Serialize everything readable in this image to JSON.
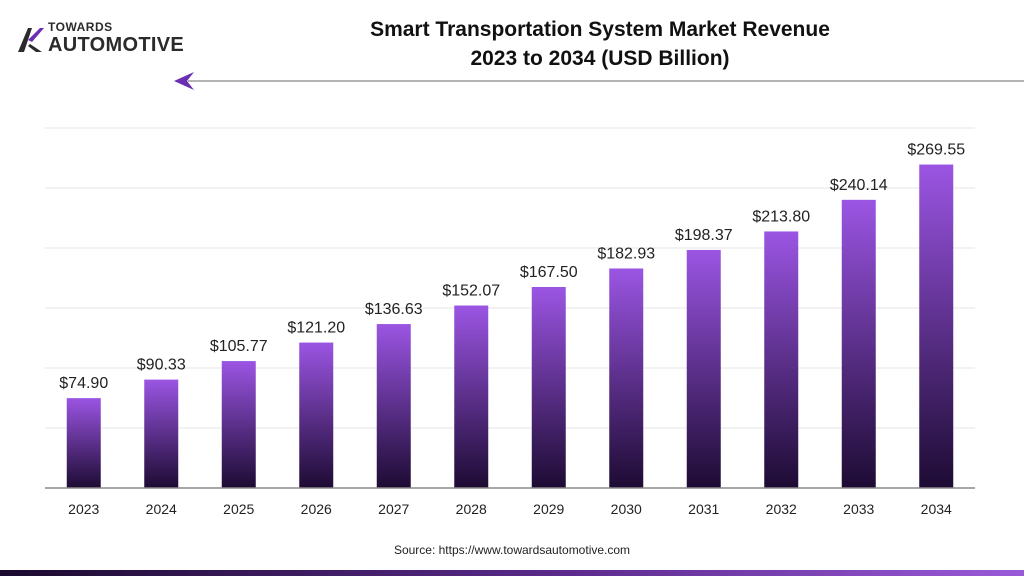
{
  "logo": {
    "top_text": "TOWARDS",
    "bottom_text": "AUTOMOTIVE"
  },
  "chart_data": {
    "type": "bar",
    "title_lines": [
      "Smart Transportation System Market Revenue",
      "2023 to 2034 (USD Billion)"
    ],
    "categories": [
      "2023",
      "2024",
      "2025",
      "2026",
      "2027",
      "2028",
      "2029",
      "2030",
      "2031",
      "2032",
      "2033",
      "2034"
    ],
    "values": [
      74.9,
      90.33,
      105.77,
      121.2,
      136.63,
      152.07,
      167.5,
      182.93,
      198.37,
      213.8,
      240.14,
      269.55
    ],
    "value_labels": [
      "$74.90",
      "$90.33",
      "$105.77",
      "$121.20",
      "$136.63",
      "$152.07",
      "$167.50",
      "$182.93",
      "$198.37",
      "$213.80",
      "$240.14",
      "$269.55"
    ],
    "xlabel": "",
    "ylabel": "",
    "ylim": [
      0,
      300
    ],
    "grid": true,
    "bar_gradient": {
      "top": "#9b55e3",
      "bottom": "#1d0b33"
    },
    "grid_color": "#e6e6e6",
    "axis_color": "#8a8a8a"
  },
  "source": "Source: https://www.towardsautomotive.com",
  "colors": {
    "accent": "#5b2a8c",
    "arrow": "#6b2fb3"
  }
}
